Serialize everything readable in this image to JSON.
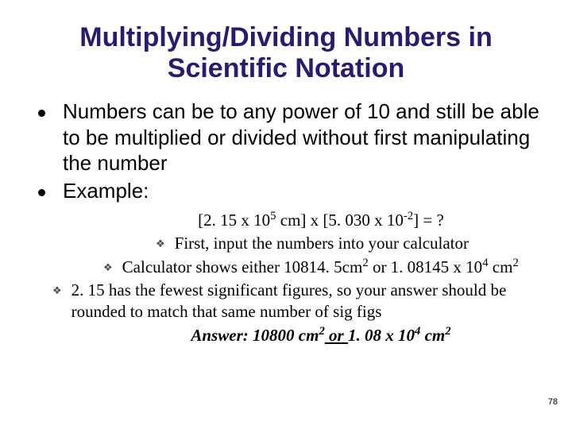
{
  "title_color": "#2b1b6e",
  "text_color": "#000000",
  "background_color": "#ffffff",
  "bullet_color": "#000000",
  "diamond_color": "#4a4a4a",
  "title": "Multiplying/Dividing Numbers in Scientific Notation",
  "bullets": [
    "Numbers can be to any power of 10 and still be able to be multiplied or divided without first manipulating the number",
    "Example:"
  ],
  "example": {
    "equation_pre": "[2. 15 x 10",
    "equation_exp1": "5",
    "equation_mid": " cm] x [5. 030 x 10",
    "equation_exp2": "-2",
    "equation_post": "] = ?",
    "sub1": "First, input the numbers into your calculator",
    "sub2_pre": "Calculator shows either 10814. 5cm",
    "sub2_sup1": "2",
    "sub2_mid": " or 1. 08145 x 10",
    "sub2_sup2": "4",
    "sub2_mid2": " cm",
    "sub2_sup3": "2",
    "sub3": "2. 15 has the fewest significant figures, so your answer should be rounded to match that same number of sig figs",
    "answer_pre": "Answer: 10800 cm",
    "answer_sup1": "2",
    "answer_or": " or ",
    "answer_mid": "1. 08 x 10",
    "answer_sup2": "4",
    "answer_mid2": " cm",
    "answer_sup3": "2"
  },
  "page_number": "78"
}
